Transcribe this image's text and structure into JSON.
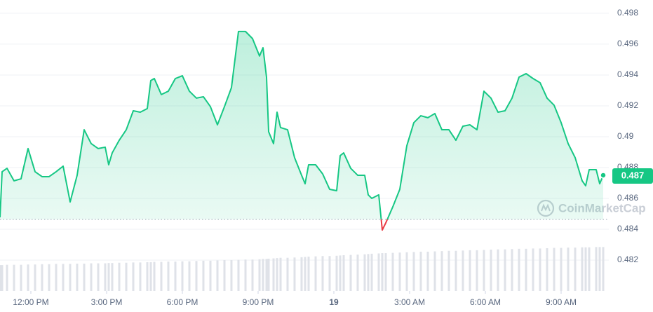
{
  "chart_data": {
    "type": "line",
    "color": "#16c784",
    "down_color": "#ea3943",
    "reference_value": 0.48464,
    "grid": true,
    "xlim": [
      -1.222,
      22.889
    ],
    "ylim": [
      0.48,
      0.49886
    ],
    "y2lim": [
      0,
      100
    ],
    "xticks": [
      {
        "value": 0,
        "label": "12:00 PM"
      },
      {
        "value": 3,
        "label": "3:00 PM"
      },
      {
        "value": 6,
        "label": "6:00 PM"
      },
      {
        "value": 9,
        "label": "9:00 PM"
      },
      {
        "value": 12,
        "label": "19"
      },
      {
        "value": 15,
        "label": "3:00 AM"
      },
      {
        "value": 18,
        "label": "6:00 AM"
      },
      {
        "value": 21,
        "label": "9:00 AM"
      }
    ],
    "yticks": [
      0.482,
      0.484,
      0.486,
      0.488,
      0.49,
      0.492,
      0.494,
      0.496,
      0.498
    ],
    "x": [
      -1.222,
      -1.139,
      -0.944,
      -0.667,
      -0.389,
      -0.111,
      0.167,
      0.444,
      0.722,
      1.0,
      1.278,
      1.556,
      1.833,
      2.111,
      2.389,
      2.667,
      2.944,
      3.083,
      3.222,
      3.5,
      3.778,
      4.056,
      4.333,
      4.611,
      4.75,
      4.889,
      5.167,
      5.444,
      5.722,
      6.0,
      6.278,
      6.556,
      6.833,
      7.111,
      7.389,
      7.667,
      7.944,
      8.222,
      8.5,
      8.778,
      9.056,
      9.194,
      9.333,
      9.417,
      9.611,
      9.75,
      9.889,
      10.167,
      10.444,
      10.722,
      10.861,
      11.0,
      11.278,
      11.556,
      11.833,
      12.111,
      12.25,
      12.389,
      12.667,
      12.944,
      13.222,
      13.361,
      13.5,
      13.778,
      13.917,
      14.056,
      14.333,
      14.611,
      14.889,
      15.167,
      15.444,
      15.722,
      16.0,
      16.278,
      16.556,
      16.833,
      17.111,
      17.389,
      17.667,
      17.944,
      18.222,
      18.5,
      18.778,
      19.056,
      19.333,
      19.611,
      19.889,
      20.167,
      20.444,
      20.722,
      21.0,
      21.278,
      21.556,
      21.833,
      21.972,
      22.111,
      22.389,
      22.528,
      22.667
    ],
    "values": [
      0.48477,
      0.48773,
      0.48795,
      0.48714,
      0.48727,
      0.48923,
      0.48773,
      0.48741,
      0.48741,
      0.48773,
      0.48809,
      0.48577,
      0.4875,
      0.49045,
      0.48955,
      0.48923,
      0.48932,
      0.48818,
      0.48895,
      0.48977,
      0.49045,
      0.49168,
      0.49159,
      0.49182,
      0.49364,
      0.49377,
      0.49273,
      0.49295,
      0.49377,
      0.49395,
      0.49295,
      0.4925,
      0.49259,
      0.49195,
      0.49077,
      0.49195,
      0.49318,
      0.49682,
      0.49682,
      0.49636,
      0.49523,
      0.49577,
      0.49386,
      0.49032,
      0.48955,
      0.49159,
      0.49059,
      0.49045,
      0.48864,
      0.4875,
      0.48695,
      0.48818,
      0.48818,
      0.48759,
      0.48659,
      0.4865,
      0.48877,
      0.48895,
      0.48795,
      0.4875,
      0.4875,
      0.48623,
      0.486,
      0.48623,
      0.48395,
      0.48441,
      0.48545,
      0.48659,
      0.48941,
      0.49091,
      0.49136,
      0.49123,
      0.4915,
      0.49045,
      0.49045,
      0.48977,
      0.49068,
      0.49077,
      0.49045,
      0.49295,
      0.4925,
      0.49159,
      0.49168,
      0.4925,
      0.49386,
      0.49409,
      0.49377,
      0.4935,
      0.4925,
      0.49204,
      0.49091,
      0.48955,
      0.48864,
      0.48714,
      0.48682,
      0.48786,
      0.48786,
      0.48695,
      0.4875
    ],
    "volume_color": "#dfe2e8",
    "volume_values": [
      8.9,
      8.9,
      9.0,
      9.0,
      9.0,
      9.1,
      9.1,
      9.2,
      9.2,
      9.3,
      9.3,
      9.3,
      9.4,
      9.4,
      9.5,
      9.5,
      9.5,
      9.6,
      9.6,
      9.7,
      9.7,
      9.8,
      9.8,
      9.9,
      9.9,
      10.0,
      10.0,
      10.1,
      10.1,
      10.2,
      10.2,
      10.3,
      10.4,
      10.4,
      10.5,
      10.6,
      10.6,
      10.7,
      10.8,
      10.8,
      10.9,
      11.0,
      11.0,
      11.1,
      11.2,
      11.3,
      11.4,
      11.4,
      11.5,
      11.6,
      11.7,
      11.8,
      11.9,
      12.0,
      12.0,
      12.1,
      12.2,
      12.3,
      12.4,
      12.5,
      12.6,
      12.7,
      12.8,
      12.9,
      13.0,
      13.0,
      13.1,
      13.2,
      13.3,
      13.4,
      13.5,
      13.5,
      13.6,
      13.7,
      13.8,
      13.8,
      13.9,
      14.0,
      14.0,
      14.1,
      14.2,
      14.3,
      14.3,
      14.4,
      14.5,
      14.5,
      14.6,
      14.6,
      14.7,
      14.8,
      14.8,
      14.9,
      14.9,
      15.0,
      15.0,
      15.0,
      15.1,
      15.1,
      15.1
    ],
    "last_price_label": "0.487",
    "watermark": "CoinMarketCap"
  }
}
